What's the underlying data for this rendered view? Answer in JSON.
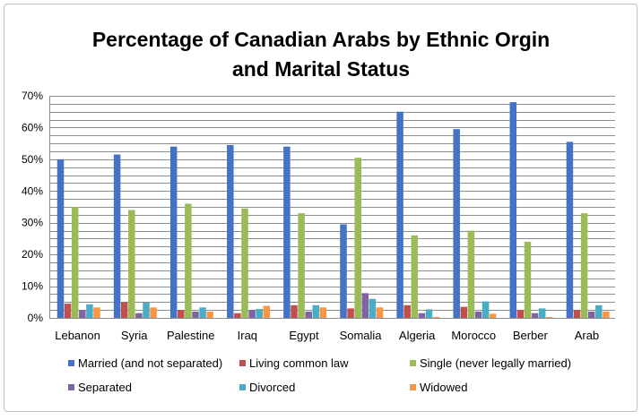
{
  "chart_data": {
    "type": "bar",
    "title_lines": [
      "Percentage of Canadian Arabs by Ethnic Orgin",
      "and Marital Status"
    ],
    "categories": [
      "Lebanon",
      "Syria",
      "Palestine",
      "Iraq",
      "Egypt",
      "Somalia",
      "Algeria",
      "Morocco",
      "Berber",
      "Arab"
    ],
    "y_ticks": [
      "0%",
      "10%",
      "20%",
      "30%",
      "40%",
      "50%",
      "60%",
      "70%"
    ],
    "ylim": [
      0,
      70
    ],
    "grid": true,
    "legend_position": "bottom",
    "series": [
      {
        "name": "Married (and not separated)",
        "color": "#4472c4",
        "values": [
          50.0,
          51.5,
          54.0,
          54.5,
          54.0,
          29.5,
          65.0,
          59.5,
          68.0,
          55.5
        ]
      },
      {
        "name": "Living common law",
        "color": "#c0504d",
        "values": [
          4.5,
          5.0,
          2.5,
          1.5,
          4.0,
          3.0,
          4.0,
          3.5,
          2.5,
          2.5
        ]
      },
      {
        "name": "Single (never legally married)",
        "color": "#9bbb59",
        "values": [
          35.0,
          34.0,
          36.0,
          34.5,
          33.0,
          50.5,
          26.0,
          27.5,
          24.0,
          33.0
        ]
      },
      {
        "name": "Separated",
        "color": "#8064a2",
        "values": [
          2.5,
          1.5,
          2.0,
          2.5,
          2.0,
          7.8,
          1.5,
          2.0,
          1.5,
          2.0
        ]
      },
      {
        "name": "Divorced",
        "color": "#4bacc6",
        "values": [
          4.3,
          4.8,
          3.3,
          2.8,
          4.0,
          6.0,
          2.7,
          5.2,
          3.0,
          4.0
        ]
      },
      {
        "name": "Widowed",
        "color": "#f79646",
        "values": [
          3.3,
          3.3,
          2.0,
          3.8,
          3.3,
          3.3,
          0.3,
          1.3,
          0.3,
          2.0
        ]
      }
    ]
  }
}
